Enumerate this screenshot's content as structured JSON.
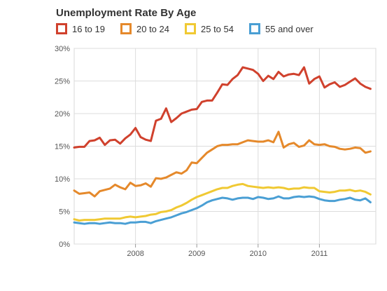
{
  "chart_data": {
    "type": "line",
    "title": "Unemployment Rate By Age",
    "xlabel": "",
    "ylabel": "",
    "ylim": [
      0,
      30
    ],
    "yticks": [
      "0%",
      "5%",
      "10%",
      "15%",
      "20%",
      "25%",
      "30%"
    ],
    "ytick_values": [
      0,
      5,
      10,
      15,
      20,
      25,
      30
    ],
    "xlim": [
      2007.0,
      2011.92
    ],
    "xticks": [
      "2008",
      "2009",
      "2010",
      "2011"
    ],
    "xtick_values": [
      2008,
      2009,
      2010,
      2011
    ],
    "grid": true,
    "legend_position": "top-left",
    "x_start": 2007.0,
    "x_step": 0.0833333,
    "series": [
      {
        "name": "16 to 19",
        "color": "#d0412d",
        "values": [
          14.8,
          14.9,
          14.9,
          15.8,
          15.9,
          16.3,
          15.2,
          15.9,
          16.0,
          15.4,
          16.2,
          16.8,
          17.8,
          16.4,
          16.0,
          15.8,
          18.9,
          19.2,
          20.8,
          18.7,
          19.3,
          20.0,
          20.3,
          20.6,
          20.7,
          21.8,
          22.0,
          22.0,
          23.2,
          24.5,
          24.4,
          25.3,
          25.9,
          27.1,
          26.9,
          26.7,
          26.1,
          25.0,
          25.8,
          25.3,
          26.4,
          25.7,
          26.0,
          26.1,
          25.9,
          27.1,
          24.6,
          25.3,
          25.7,
          24.0,
          24.5,
          24.8,
          24.1,
          24.4,
          24.9,
          25.4,
          24.6,
          24.1,
          23.8
        ]
      },
      {
        "name": "20 to 24",
        "color": "#e5892b",
        "values": [
          8.2,
          7.7,
          7.8,
          7.9,
          7.3,
          8.1,
          8.3,
          8.5,
          9.1,
          8.7,
          8.4,
          9.4,
          8.9,
          9.0,
          9.3,
          8.8,
          10.1,
          10.0,
          10.2,
          10.6,
          11.0,
          10.8,
          11.3,
          12.5,
          12.4,
          13.2,
          14.0,
          14.5,
          15.0,
          15.2,
          15.2,
          15.3,
          15.3,
          15.6,
          15.9,
          15.8,
          15.7,
          15.7,
          15.9,
          15.6,
          17.2,
          14.8,
          15.3,
          15.5,
          14.9,
          15.1,
          15.9,
          15.3,
          15.2,
          15.3,
          15.0,
          14.9,
          14.6,
          14.5,
          14.6,
          14.8,
          14.7,
          14.0,
          14.2
        ]
      },
      {
        "name": "25 to 54",
        "color": "#f0c933",
        "values": [
          3.8,
          3.6,
          3.7,
          3.7,
          3.7,
          3.8,
          3.9,
          3.9,
          3.9,
          3.9,
          4.1,
          4.2,
          4.1,
          4.2,
          4.3,
          4.5,
          4.6,
          4.9,
          5.0,
          5.2,
          5.6,
          5.9,
          6.3,
          6.8,
          7.2,
          7.5,
          7.8,
          8.1,
          8.4,
          8.6,
          8.6,
          8.9,
          9.1,
          9.2,
          8.9,
          8.8,
          8.7,
          8.6,
          8.7,
          8.6,
          8.7,
          8.6,
          8.4,
          8.5,
          8.5,
          8.7,
          8.6,
          8.6,
          8.1,
          8.0,
          7.9,
          8.0,
          8.2,
          8.2,
          8.3,
          8.1,
          8.2,
          8.0,
          7.6
        ]
      },
      {
        "name": "55 and over",
        "color": "#4a9fd4",
        "values": [
          3.3,
          3.2,
          3.1,
          3.2,
          3.2,
          3.1,
          3.2,
          3.3,
          3.2,
          3.2,
          3.1,
          3.3,
          3.3,
          3.4,
          3.4,
          3.2,
          3.5,
          3.7,
          3.9,
          4.1,
          4.4,
          4.7,
          4.9,
          5.2,
          5.5,
          5.9,
          6.4,
          6.7,
          6.9,
          7.1,
          7.0,
          6.8,
          7.0,
          7.1,
          7.1,
          6.9,
          7.2,
          7.1,
          6.9,
          7.0,
          7.3,
          7.0,
          7.0,
          7.2,
          7.3,
          7.2,
          7.3,
          7.2,
          6.9,
          6.7,
          6.6,
          6.6,
          6.8,
          6.9,
          7.1,
          6.8,
          6.7,
          7.0,
          6.4
        ]
      }
    ]
  }
}
